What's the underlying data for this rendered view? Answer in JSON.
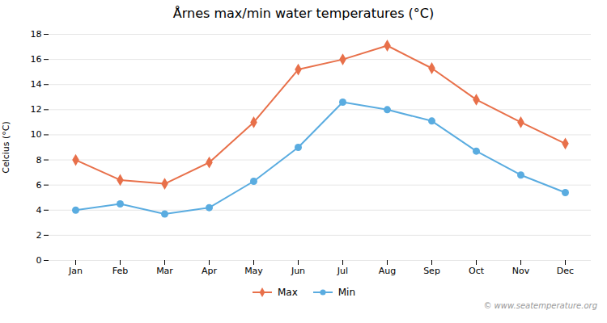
{
  "chart_data": {
    "type": "line",
    "title": "Årnes max/min water temperatures (°C)",
    "ylabel": "Celcius (°C)",
    "categories": [
      "Jan",
      "Feb",
      "Mar",
      "Apr",
      "May",
      "Jun",
      "Jul",
      "Aug",
      "Sep",
      "Oct",
      "Nov",
      "Dec"
    ],
    "series": [
      {
        "name": "Max",
        "color": "#e8704a",
        "marker": "diamond",
        "values": [
          8.0,
          6.4,
          6.1,
          7.8,
          11.0,
          15.2,
          16.0,
          17.1,
          15.3,
          12.8,
          11.0,
          9.3
        ]
      },
      {
        "name": "Min",
        "color": "#5aace0",
        "marker": "circle",
        "values": [
          4.0,
          4.5,
          3.7,
          4.2,
          6.3,
          9.0,
          12.6,
          12.0,
          11.1,
          8.7,
          6.8,
          5.4
        ]
      }
    ],
    "ylim": [
      0,
      18
    ],
    "yticks": [
      0,
      2,
      4,
      6,
      8,
      10,
      12,
      14,
      16,
      18
    ],
    "grid": true,
    "legend": "bottom",
    "annotations": [
      {
        "text": "© www.seatemperature.org"
      }
    ]
  }
}
